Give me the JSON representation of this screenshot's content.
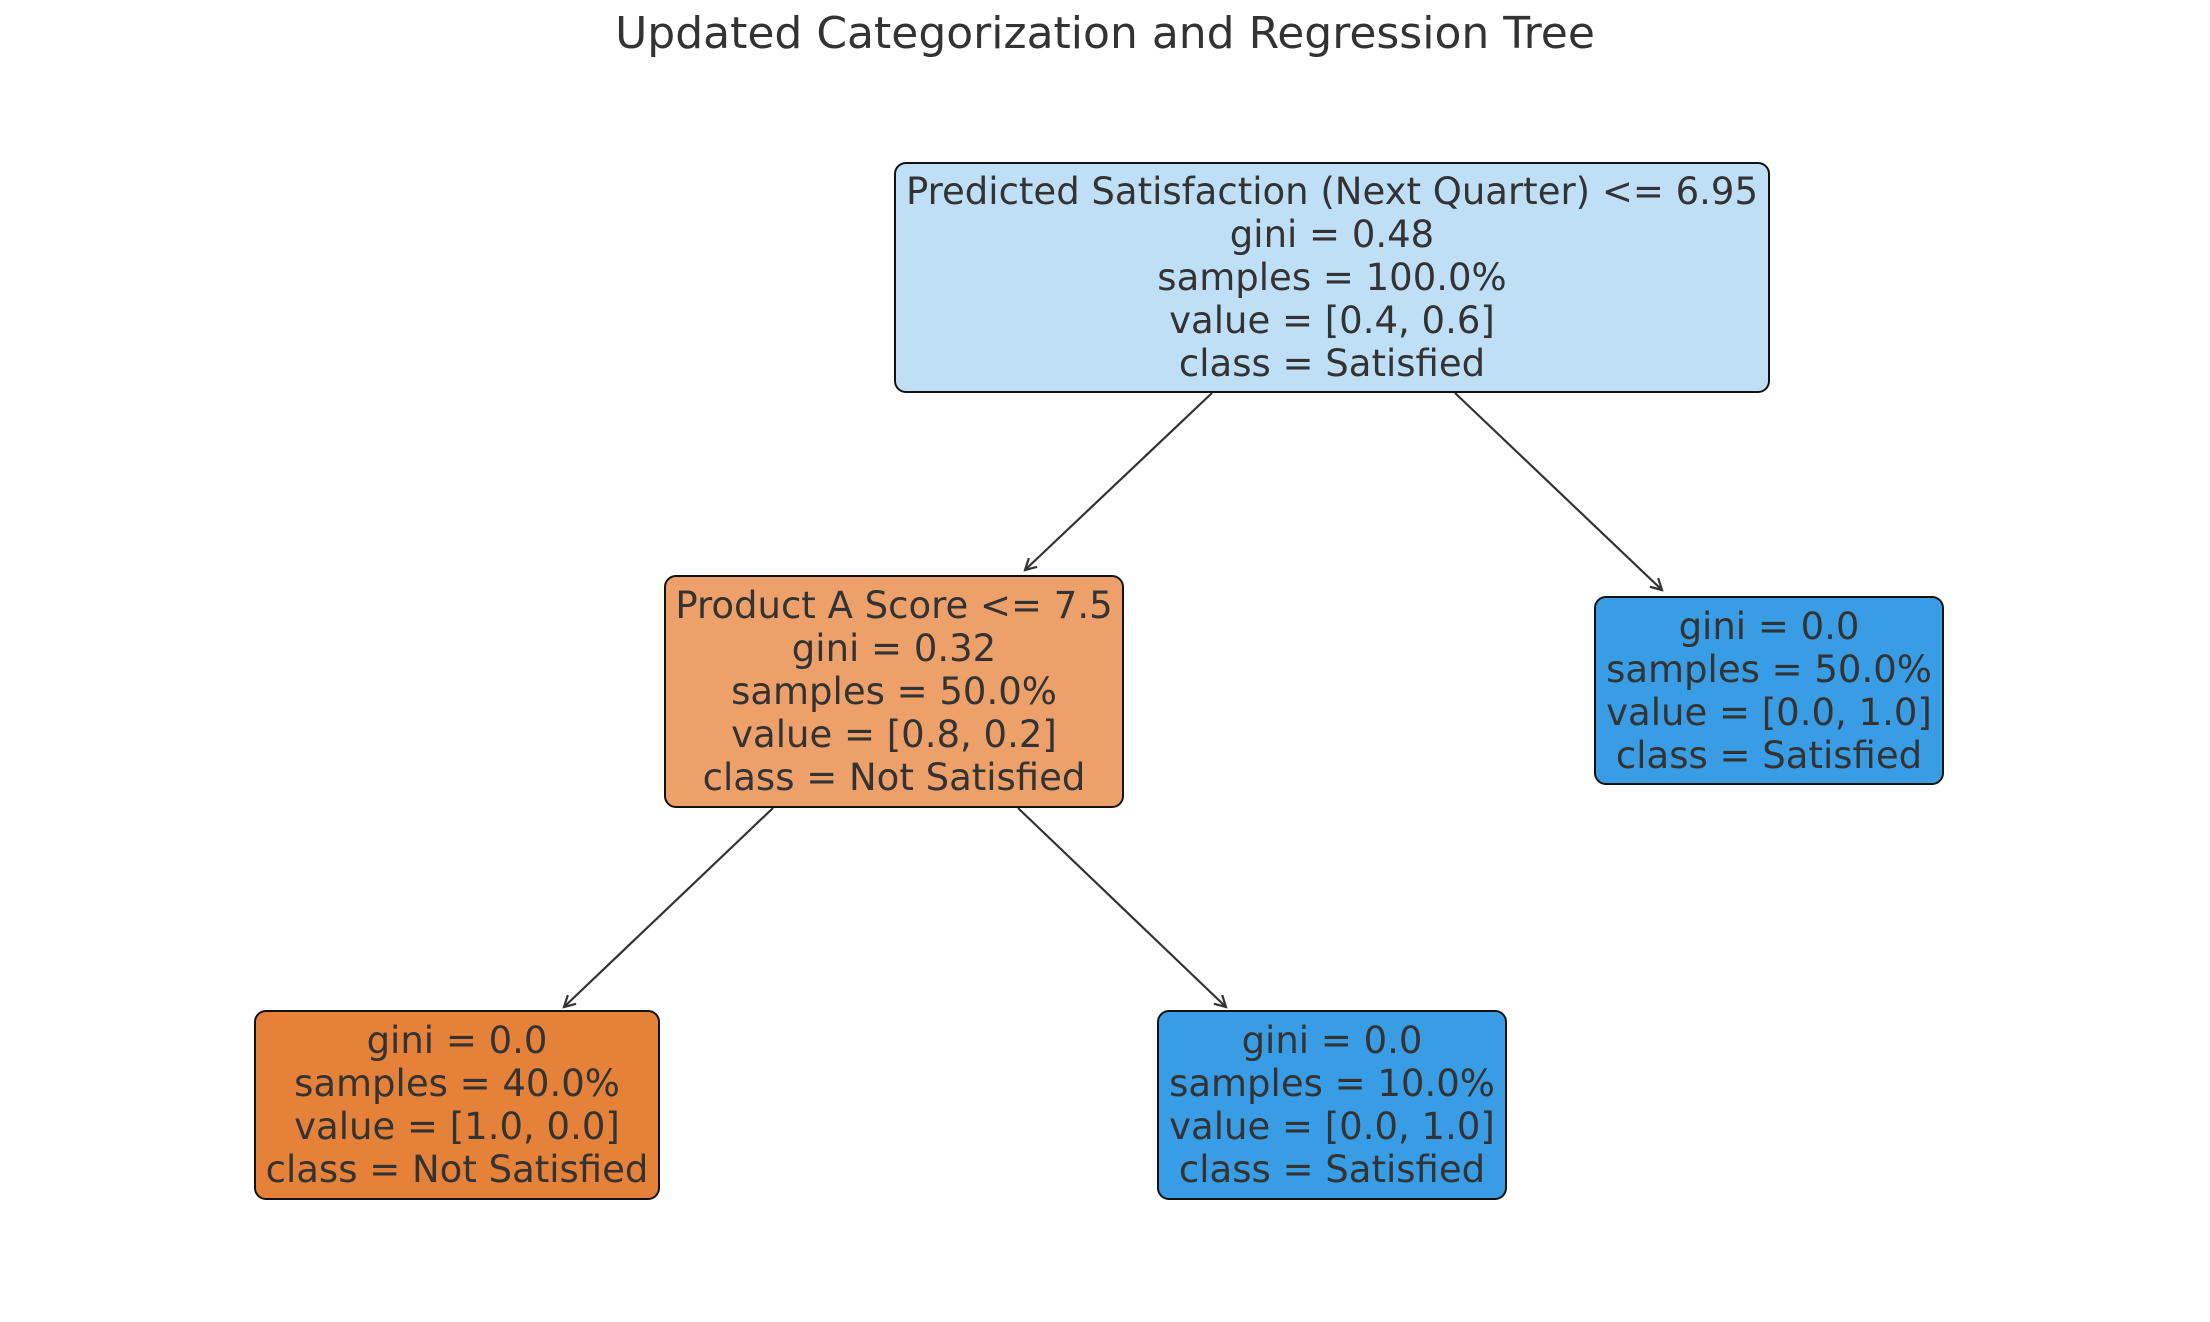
{
  "title": "Updated Categorization and Regression Tree",
  "colors": {
    "root": "#bfdff7",
    "node1": "#eda069",
    "leaf_right": "#399de5",
    "leaf_ll": "#e68139",
    "leaf_lr": "#399de5"
  },
  "nodes": {
    "root": {
      "condition": "Predicted Satisfaction (Next Quarter) <= 6.95",
      "gini": "gini = 0.48",
      "samples": "samples = 100.0%",
      "value": "value = [0.4, 0.6]",
      "class": "class = Satisfied"
    },
    "node1": {
      "condition": "Product A Score <= 7.5",
      "gini": "gini = 0.32",
      "samples": "samples = 50.0%",
      "value": "value = [0.8, 0.2]",
      "class": "class = Not Satisfied"
    },
    "leaf_right": {
      "gini": "gini = 0.0",
      "samples": "samples = 50.0%",
      "value": "value = [0.0, 1.0]",
      "class": "class = Satisfied"
    },
    "leaf_ll": {
      "gini": "gini = 0.0",
      "samples": "samples = 40.0%",
      "value": "value = [1.0, 0.0]",
      "class": "class = Not Satisfied"
    },
    "leaf_lr": {
      "gini": "gini = 0.0",
      "samples": "samples = 10.0%",
      "value": "value = [0.0, 1.0]",
      "class": "class = Satisfied"
    }
  }
}
